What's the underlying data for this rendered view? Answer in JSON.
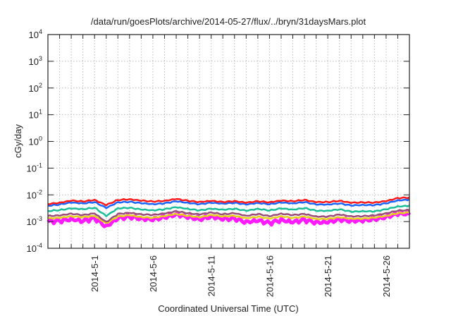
{
  "chart_data": {
    "type": "line",
    "title": "/data/run/goesPlots/archive/2014-05-27/flux/../bryn/31daysMars.plot",
    "xlabel": "Coordinated Universal Time (UTC)",
    "ylabel": "cGy/day",
    "yscale": "log",
    "ylim": [
      0.0001,
      10000
    ],
    "xlim_days": [
      0,
      31
    ],
    "x_start_date": "2014-4-27",
    "grid": true,
    "y_ticks": [
      {
        "base": "10",
        "exp": "-4",
        "value": 0.0001
      },
      {
        "base": "10",
        "exp": "-3",
        "value": 0.001
      },
      {
        "base": "10",
        "exp": "-2",
        "value": 0.01
      },
      {
        "base": "10",
        "exp": "-1",
        "value": 0.1
      },
      {
        "base": "10",
        "exp": "0",
        "value": 1
      },
      {
        "base": "10",
        "exp": "1",
        "value": 10
      },
      {
        "base": "10",
        "exp": "2",
        "value": 100
      },
      {
        "base": "10",
        "exp": "3",
        "value": 1000
      },
      {
        "base": "10",
        "exp": "4",
        "value": 10000
      }
    ],
    "x_ticks": [
      {
        "label": "2014-5-1",
        "day": 4
      },
      {
        "label": "2014-5-6",
        "day": 9
      },
      {
        "label": "2014-5-11",
        "day": 14
      },
      {
        "label": "2014-5-16",
        "day": 19
      },
      {
        "label": "2014-5-21",
        "day": 24
      },
      {
        "label": "2014-5-26",
        "day": 29
      }
    ],
    "x_days": [
      0,
      1,
      2,
      3,
      4,
      5,
      6,
      7,
      8,
      9,
      10,
      11,
      12,
      13,
      14,
      15,
      16,
      17,
      18,
      19,
      20,
      21,
      22,
      23,
      24,
      25,
      26,
      27,
      28,
      29,
      30,
      31
    ],
    "series": [
      {
        "name": "red",
        "color": "#ff1a1a",
        "values": [
          0.0046,
          0.005,
          0.006,
          0.0055,
          0.0062,
          0.004,
          0.0062,
          0.0066,
          0.006,
          0.0056,
          0.006,
          0.0072,
          0.0062,
          0.0056,
          0.0062,
          0.0056,
          0.006,
          0.0052,
          0.0058,
          0.0052,
          0.006,
          0.0056,
          0.0062,
          0.0052,
          0.0052,
          0.0058,
          0.005,
          0.0052,
          0.0052,
          0.006,
          0.0078,
          0.0082
        ]
      },
      {
        "name": "blue",
        "color": "#1a66ff",
        "values": [
          0.0038,
          0.0042,
          0.005,
          0.0046,
          0.0052,
          0.0032,
          0.0052,
          0.0055,
          0.005,
          0.0046,
          0.005,
          0.006,
          0.0052,
          0.0046,
          0.0052,
          0.0047,
          0.005,
          0.0043,
          0.0048,
          0.0043,
          0.005,
          0.0046,
          0.0052,
          0.0043,
          0.0043,
          0.0048,
          0.0041,
          0.0043,
          0.0043,
          0.005,
          0.0064,
          0.0068
        ]
      },
      {
        "name": "teal",
        "color": "#1abf99",
        "values": [
          0.0024,
          0.0026,
          0.003,
          0.0028,
          0.0032,
          0.0016,
          0.0031,
          0.0033,
          0.0029,
          0.0027,
          0.003,
          0.0036,
          0.0031,
          0.0027,
          0.0031,
          0.0028,
          0.003,
          0.0025,
          0.0029,
          0.0025,
          0.003,
          0.0027,
          0.0031,
          0.0025,
          0.0025,
          0.0029,
          0.0024,
          0.0025,
          0.0025,
          0.003,
          0.0038,
          0.004
        ]
      },
      {
        "name": "purple",
        "color": "#9a4d7a",
        "values": [
          0.0016,
          0.0017,
          0.002,
          0.0018,
          0.0021,
          0.001,
          0.002,
          0.0022,
          0.0019,
          0.0018,
          0.002,
          0.0024,
          0.002,
          0.0018,
          0.0021,
          0.0018,
          0.002,
          0.0016,
          0.0019,
          0.0016,
          0.002,
          0.0018,
          0.002,
          0.0016,
          0.0016,
          0.0019,
          0.0016,
          0.0016,
          0.0017,
          0.002,
          0.0025,
          0.0026
        ]
      },
      {
        "name": "yellow",
        "color": "#e6d21a",
        "values": [
          0.0013,
          0.0014,
          0.0016,
          0.0015,
          0.0017,
          0.0009,
          0.0016,
          0.0018,
          0.0015,
          0.0014,
          0.0016,
          0.0019,
          0.0016,
          0.0014,
          0.0017,
          0.0015,
          0.0016,
          0.0013,
          0.0015,
          0.0013,
          0.0016,
          0.0014,
          0.0016,
          0.0013,
          0.0013,
          0.0015,
          0.0013,
          0.0013,
          0.0014,
          0.0016,
          0.002,
          0.0021
        ]
      },
      {
        "name": "magenta",
        "color": "#ff1aff",
        "values": [
          0.0011,
          0.0012,
          0.0014,
          0.0012,
          0.0015,
          0.0007,
          0.0014,
          0.0015,
          0.0012,
          0.0011,
          0.0013,
          0.0016,
          0.0013,
          0.0011,
          0.0014,
          0.0012,
          0.0013,
          0.001,
          0.0012,
          0.001,
          0.0013,
          0.0011,
          0.0013,
          0.001,
          0.001,
          0.0012,
          0.001,
          0.001,
          0.0011,
          0.0013,
          0.0017,
          0.0018
        ]
      }
    ]
  }
}
